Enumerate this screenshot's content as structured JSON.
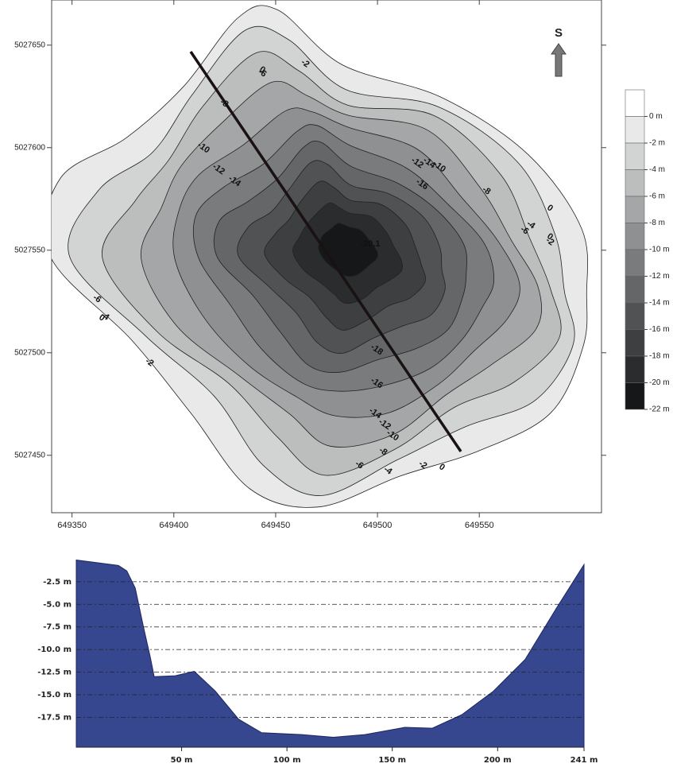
{
  "chart_data": [
    {
      "type": "contour",
      "xlim": [
        649340,
        649610
      ],
      "ylim": [
        5027422,
        5027672
      ],
      "xticks": [
        649350,
        649400,
        649450,
        649500,
        649550
      ],
      "yticks": [
        5027450,
        5027500,
        5027550,
        5027600,
        5027650
      ],
      "levels": [
        {
          "value": 0,
          "label": "0 m"
        },
        {
          "value": -2,
          "label": "-2 m"
        },
        {
          "value": -4,
          "label": "-4 m"
        },
        {
          "value": -6,
          "label": "-6 m"
        },
        {
          "value": -8,
          "label": "-8 m"
        },
        {
          "value": -10,
          "label": "-10 m"
        },
        {
          "value": -12,
          "label": "-12 m"
        },
        {
          "value": -14,
          "label": "-14 m"
        },
        {
          "value": -16,
          "label": "-16 m"
        },
        {
          "value": -18,
          "label": "-18 m"
        },
        {
          "value": -20,
          "label": "-20 m"
        },
        {
          "value": -22,
          "label": "-22 m"
        }
      ],
      "colors": [
        "#ffffff",
        "#e9e9e9",
        "#d2d3d3",
        "#bcbdbd",
        "#a5a6a7",
        "#8f9091",
        "#797b7c",
        "#646667",
        "#505253",
        "#3d3f40",
        "#2a2c2d",
        "#161718"
      ],
      "contour_labels": [
        -2,
        -6,
        -8,
        -10,
        -12,
        -14,
        -14,
        -12,
        -10,
        -16,
        -8,
        -6,
        -4,
        0,
        0,
        -2,
        -20.1,
        -6,
        -4,
        0,
        -2,
        -18,
        -16,
        -14,
        -12,
        -10,
        -8,
        -6,
        -4,
        -2,
        0,
        0
      ],
      "arrow_label": "S"
    },
    {
      "type": "area",
      "x": [
        0,
        20,
        24,
        28,
        32,
        35,
        37,
        47,
        56,
        66,
        77,
        88,
        107,
        122,
        137,
        156,
        169,
        183,
        198,
        213,
        228,
        241
      ],
      "values": [
        -0.1,
        -0.7,
        -1.3,
        -3.2,
        -7.6,
        -10.7,
        -13.0,
        -12.9,
        -12.4,
        -14.6,
        -17.7,
        -19.2,
        -19.4,
        -19.7,
        -19.4,
        -18.6,
        -18.7,
        -17.2,
        -14.6,
        -11.1,
        -5.4,
        -0.6
      ],
      "color": "#36478f",
      "xlim": [
        0,
        241
      ],
      "ylim": [
        -20.8,
        0.3
      ],
      "xticks": [
        {
          "value": 50,
          "label": "50 m"
        },
        {
          "value": 100,
          "label": "100 m"
        },
        {
          "value": 150,
          "label": "150 m"
        },
        {
          "value": 200,
          "label": "200 m"
        },
        {
          "value": 241,
          "label": "241 m"
        }
      ],
      "yticks": [
        {
          "value": -2.5,
          "label": "-2.5 m"
        },
        {
          "value": -5.0,
          "label": "-5.0 m"
        },
        {
          "value": -7.5,
          "label": "-7.5 m"
        },
        {
          "value": -10.0,
          "label": "-10.0 m"
        },
        {
          "value": -12.5,
          "label": "-12.5 m"
        },
        {
          "value": -15.0,
          "label": "-15.0 m"
        },
        {
          "value": -17.5,
          "label": "-17.5 m"
        }
      ],
      "grid": true
    }
  ]
}
